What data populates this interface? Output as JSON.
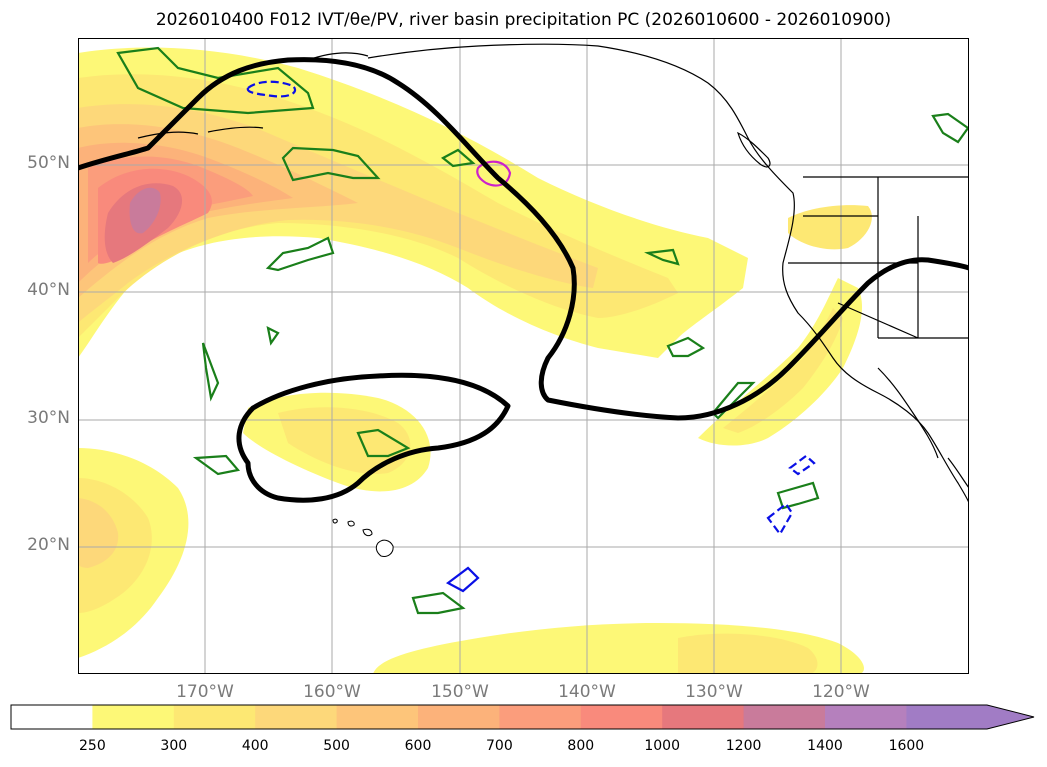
{
  "title": "2026010400 F012 IVT/θe/PV, river basin precipitation PC (2026010600 - 2026010900)",
  "lat_labels": [
    "50°N",
    "40°N",
    "30°N",
    "20°N"
  ],
  "lon_labels": [
    "170°W",
    "160°W",
    "150°W",
    "140°W",
    "130°W",
    "120°W"
  ],
  "colorbar": {
    "labels": [
      "250",
      "300",
      "400",
      "500",
      "600",
      "700",
      "800",
      "1000",
      "1200",
      "1400",
      "1600"
    ],
    "colors": [
      "#ffffff",
      "#fdf877",
      "#fde873",
      "#fdd87a",
      "#fdc57a",
      "#fcb27a",
      "#fb9d7c",
      "#f98a7c",
      "#e6787d",
      "#c97b9b",
      "#b580bd",
      "#a17cc5"
    ]
  },
  "legend_colors": {
    "jet_contour": "#000000",
    "precip_pc": "#1a7f1a",
    "blue_contour": "#0a10e6",
    "magenta_contour": "#cc22cc"
  }
}
